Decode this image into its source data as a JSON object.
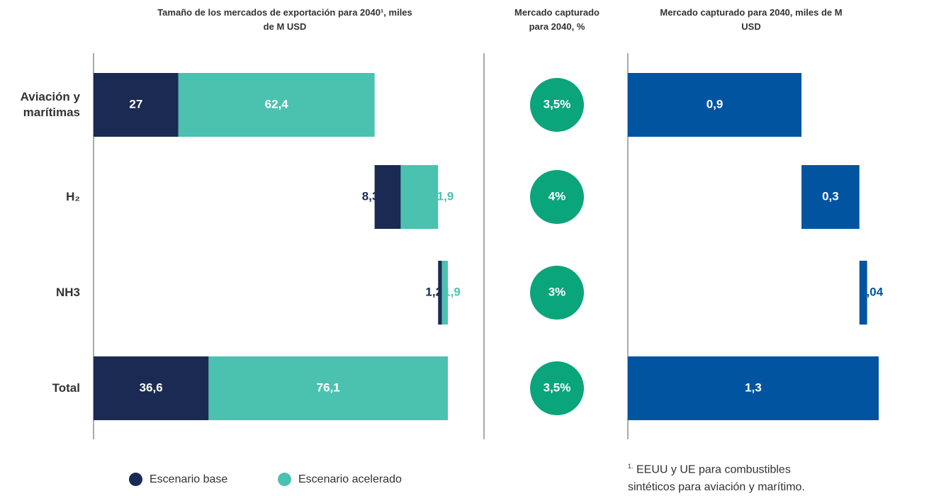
{
  "chart_data": [
    {
      "type": "waterfall",
      "title": "Tamaño de los mercados de exportación para 2040¹, miles de M USD",
      "categories": [
        "Aviación y marítimas",
        "H₂",
        "NH3",
        "Total"
      ],
      "series": [
        {
          "name": "Escenario base",
          "color": "#1b2a52",
          "values": [
            27,
            8.3,
            1.2,
            36.6
          ],
          "value_labels": [
            "27",
            "8,3",
            "1,2",
            "36,6"
          ]
        },
        {
          "name": "Escenario acelerado",
          "color": "#4bc2b0",
          "values": [
            62.4,
            11.9,
            1.9,
            76.1
          ],
          "value_labels": [
            "62,4",
            "11,9",
            "1,9",
            "76,1"
          ]
        }
      ]
    },
    {
      "type": "circle",
      "title": "Mercado capturado para 2040, %",
      "color": "#0aa57a",
      "values": [
        3.5,
        4,
        3,
        3.5
      ],
      "value_labels": [
        "3,5%",
        "4%",
        "3%",
        "3,5%"
      ]
    },
    {
      "type": "waterfall",
      "title": "Mercado capturado para 2040, miles de M USD",
      "series": [
        {
          "color": "#0054a0",
          "values": [
            0.9,
            0.3,
            0.04,
            1.3
          ],
          "value_labels": [
            "0,9",
            "0,3",
            "0,04",
            "1,3"
          ]
        }
      ]
    }
  ],
  "footnote": {
    "marker": "1.",
    "text": "EEUU y UE para combustibles sintéticos para aviación y marítimo."
  }
}
